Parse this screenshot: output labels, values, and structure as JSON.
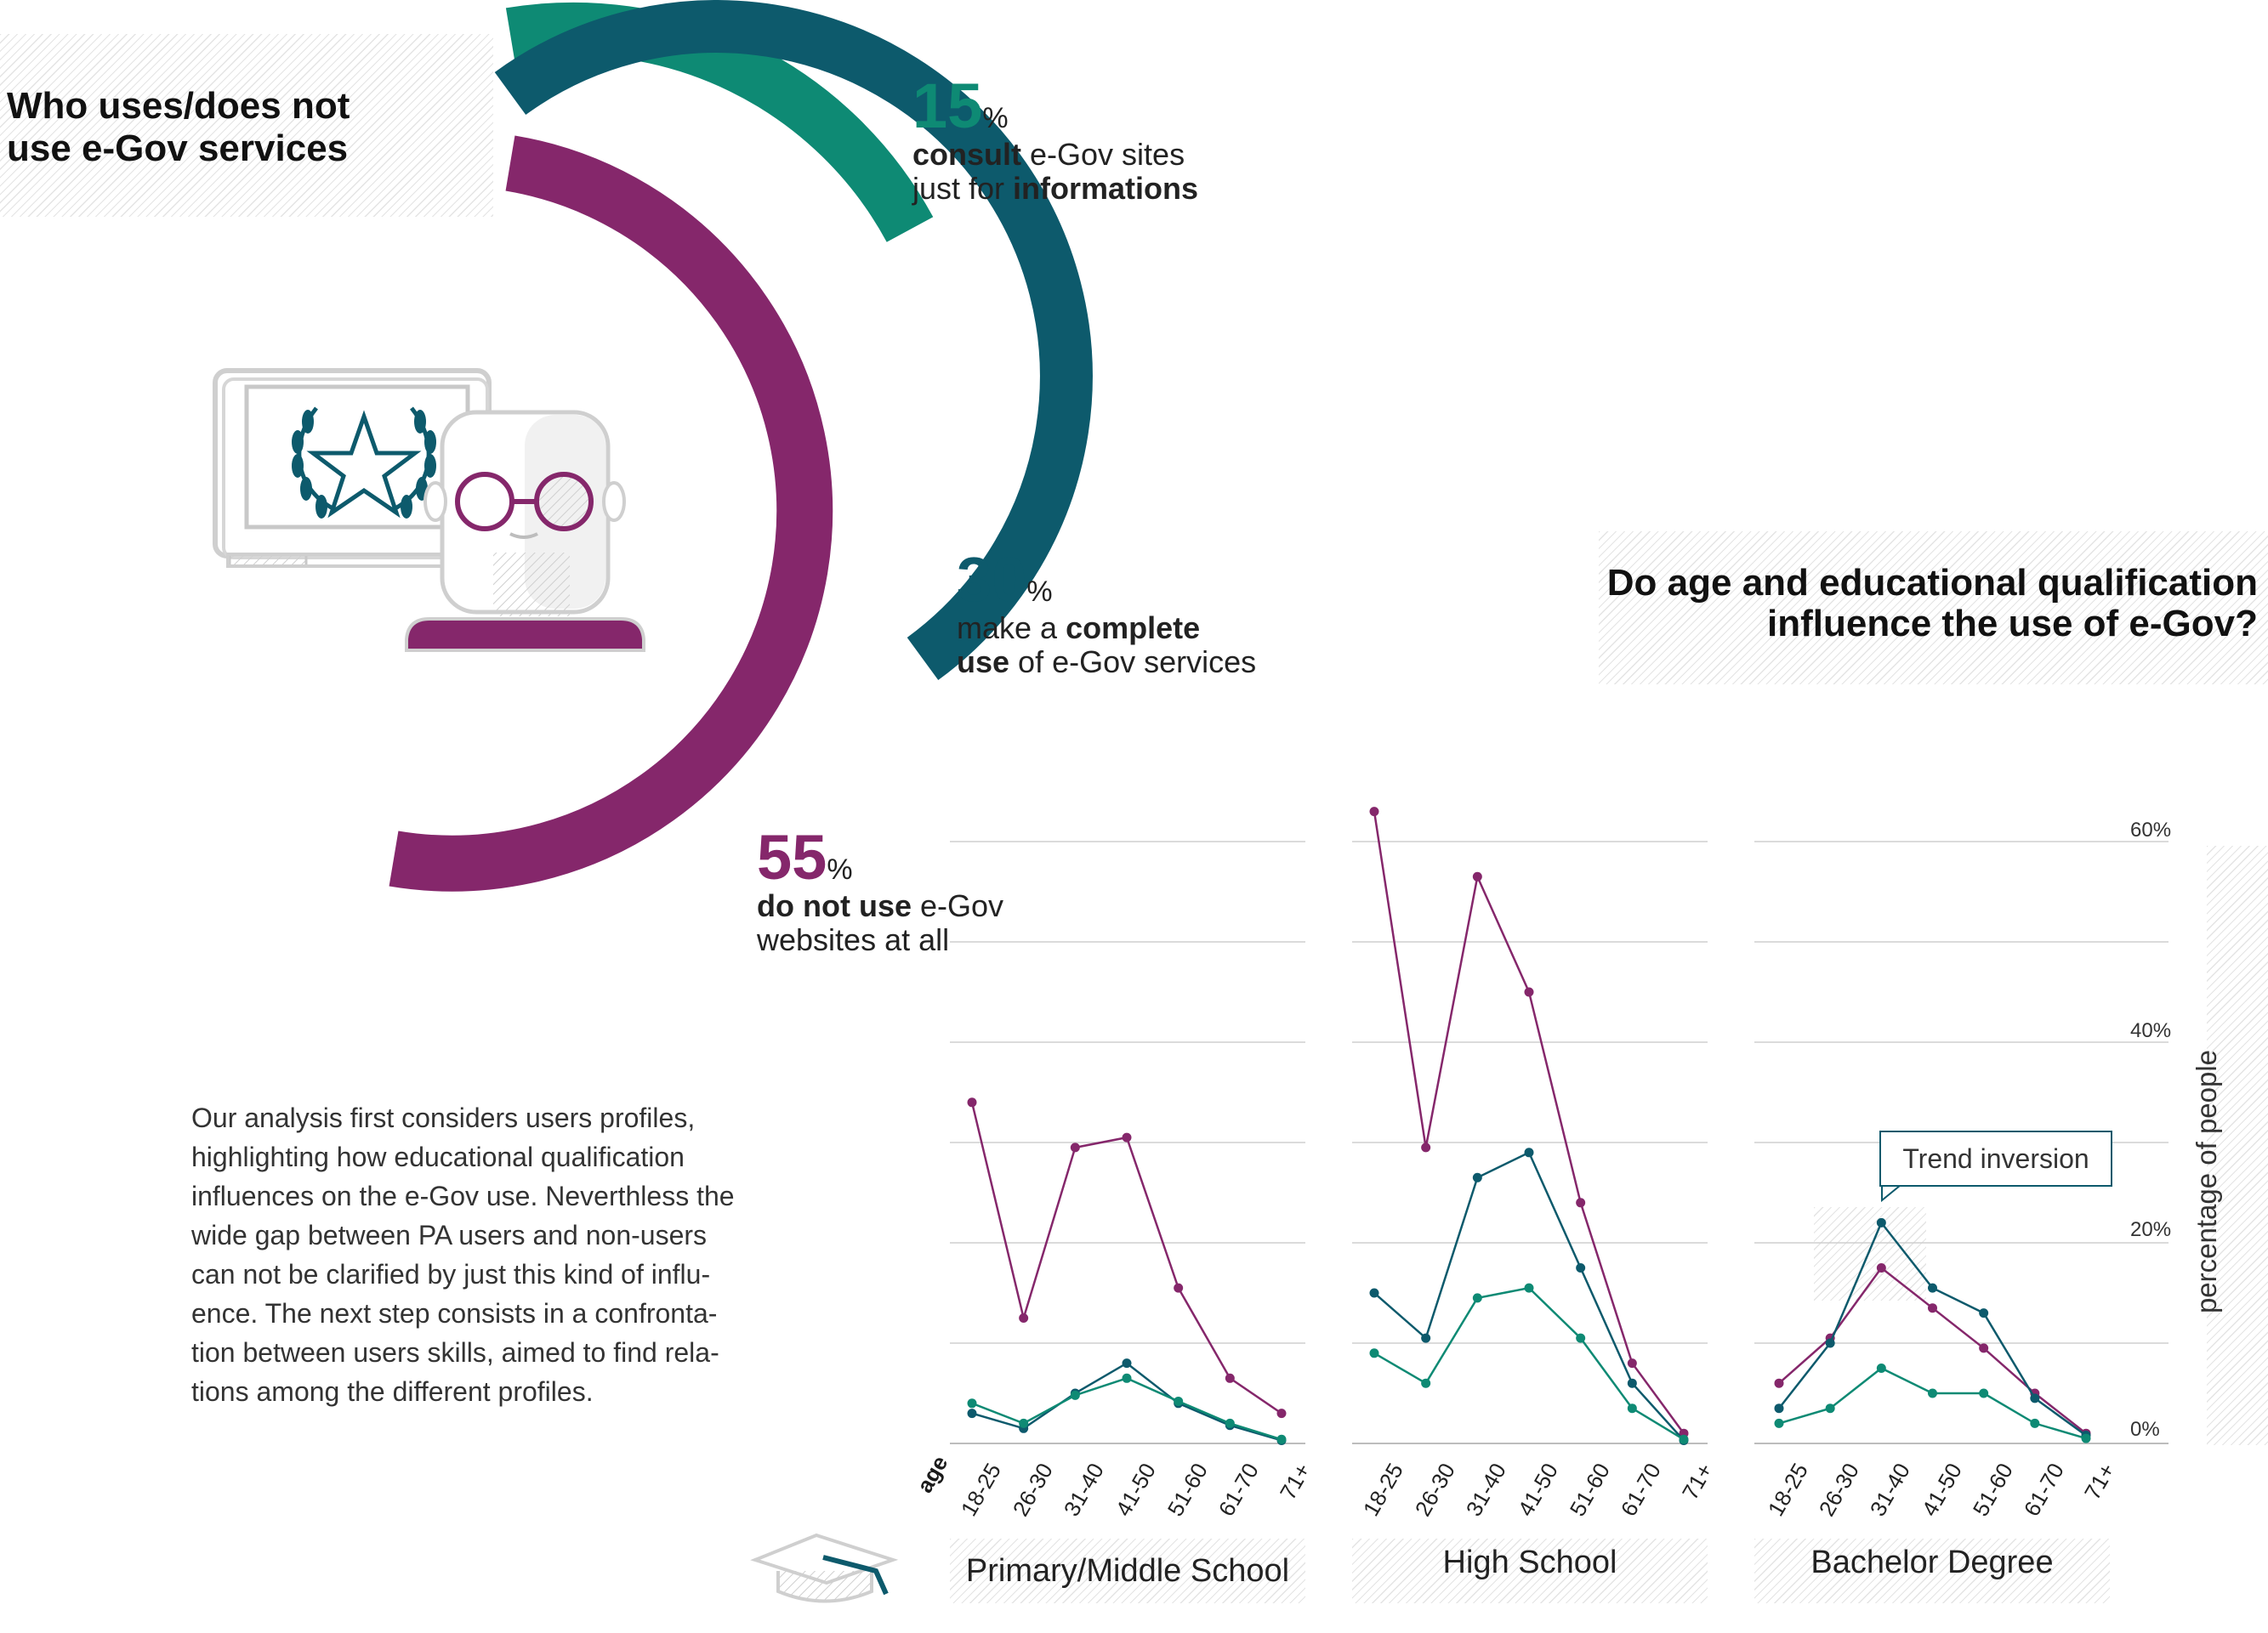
{
  "left_title": [
    "Who uses/does not",
    "use e-Gov services"
  ],
  "stats": [
    {
      "value": "15",
      "unit": "%",
      "line1_bold": "consult",
      "line1_rest": " e-Gov sites",
      "line2_pre": "just for ",
      "line2_bold": "informations",
      "color": "#0e8a74"
    },
    {
      "value": "30",
      "unit": "%",
      "line1_pre": "make a ",
      "line1_bold": "complete",
      "line2_bold": "use",
      "line2_rest": " of e-Gov services",
      "color": "#0d5a6c"
    },
    {
      "value": "55",
      "unit": "%",
      "line1_bold": "do not use",
      "line1_rest": " e-Gov",
      "line2_pre": "websites at all",
      "color": "#85276b"
    }
  ],
  "right_title": [
    "Do age and educational qualification",
    "influence the use of e-Gov?"
  ],
  "paragraph": [
    "Our analysis first considers users profiles,",
    "highlighting how educational qualification",
    "influences on the e-Gov use. Neverthless the",
    "wide gap between PA users and non-users",
    "can not be clarified by just this kind of influ-",
    "ence. The next step consists in a confronta-",
    "tion between users skills, aimed to find rela-",
    "tions among the different profiles."
  ],
  "callout": "Trend inversion",
  "age_label": "age",
  "y_axis_label": "percentage of people",
  "colors": {
    "informations": "#0e8a74",
    "complete": "#0d5a6c",
    "non_users": "#85276b",
    "grid": "#cfcfcf"
  },
  "chart_data": [
    {
      "type": "line",
      "title": "Primary/Middle School",
      "x": [
        "18-25",
        "26-30",
        "31-40",
        "41-50",
        "51-60",
        "61-70",
        "71+"
      ],
      "ylim": [
        0,
        60
      ],
      "yticks": [
        "0%",
        "20%",
        "40%",
        "60%"
      ],
      "series": [
        {
          "values": [
            34,
            12.5,
            29.5,
            30.5,
            15.5,
            6.5,
            3
          ],
          "color": "#85276b"
        },
        {
          "values": [
            3,
            1.5,
            5,
            8,
            4,
            1.8,
            0.3
          ],
          "color": "#0d5a6c"
        },
        {
          "values": [
            4,
            2,
            4.8,
            6.5,
            4.2,
            2,
            0.4
          ],
          "color": "#0e8a74"
        }
      ]
    },
    {
      "type": "line",
      "title": "High School",
      "x": [
        "18-25",
        "26-30",
        "31-40",
        "41-50",
        "51-60",
        "61-70",
        "71+"
      ],
      "ylim": [
        0,
        60
      ],
      "yticks": [
        "0%",
        "20%",
        "40%",
        "60%"
      ],
      "series": [
        {
          "values": [
            63,
            29.5,
            56.5,
            45,
            24,
            8,
            1
          ],
          "color": "#85276b"
        },
        {
          "values": [
            15,
            10.5,
            26.5,
            29,
            17.5,
            6,
            0.3
          ],
          "color": "#0d5a6c"
        },
        {
          "values": [
            9,
            6,
            14.5,
            15.5,
            10.5,
            3.5,
            0.4
          ],
          "color": "#0e8a74"
        }
      ]
    },
    {
      "type": "line",
      "title": "Bachelor Degree",
      "x": [
        "18-25",
        "26-30",
        "31-40",
        "41-50",
        "51-60",
        "61-70",
        "71+"
      ],
      "ylim": [
        0,
        60
      ],
      "yticks": [
        "0%",
        "20%",
        "40%",
        "60%"
      ],
      "series": [
        {
          "values": [
            6,
            10.5,
            17.5,
            13.5,
            9.5,
            5,
            1
          ],
          "color": "#85276b"
        },
        {
          "values": [
            3.5,
            10,
            22,
            15.5,
            13,
            4.5,
            0.8
          ],
          "color": "#0d5a6c"
        },
        {
          "values": [
            2,
            3.5,
            7.5,
            5,
            5,
            2,
            0.5
          ],
          "color": "#0e8a74"
        }
      ]
    }
  ]
}
